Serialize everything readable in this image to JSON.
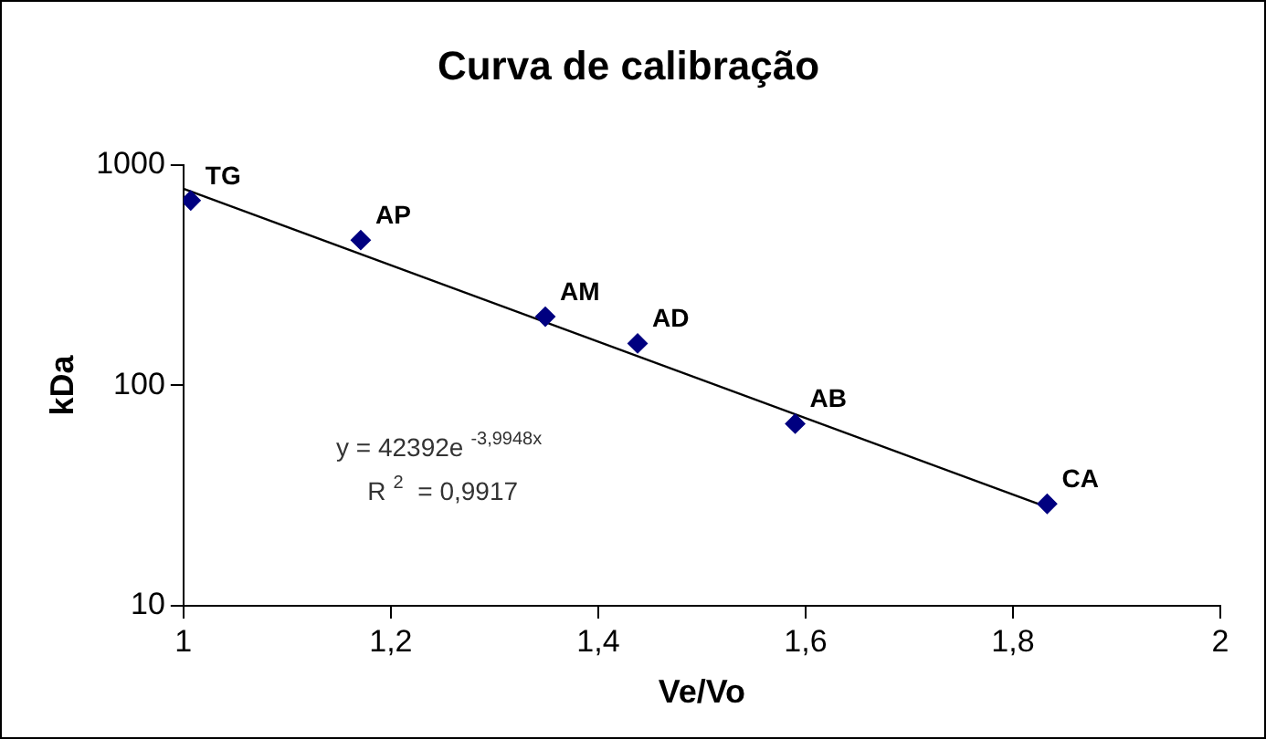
{
  "chart_data": {
    "type": "scatter",
    "title": "Curva de calibração",
    "xlabel": "Ve/Vo",
    "ylabel": "kDa",
    "log": "y",
    "grid": false,
    "legend": false,
    "marker": "diamond",
    "xlim": [
      1,
      2
    ],
    "xticks": [
      1,
      {
        "value": 1.2,
        "label": "1,2"
      },
      {
        "value": 1.4,
        "label": "1,4"
      },
      {
        "value": 1.6,
        "label": "1,6"
      },
      {
        "value": 1.8,
        "label": "1,8"
      },
      2
    ],
    "ylim": [
      10,
      1000
    ],
    "yticks": [
      10,
      100,
      1000
    ],
    "series": [
      {
        "color": "#000080",
        "x": [
          1.007,
          1.171,
          1.349,
          1.438,
          1.59,
          1.833
        ],
        "values": [
          690,
          456,
          205,
          155,
          67,
          29
        ]
      },
      {
        "type": "line",
        "color": "#000000",
        "marker": "none",
        "x": [
          1,
          1.833
        ],
        "values": [
          780,
          28
        ]
      }
    ],
    "annotations": [
      {
        "text": "TG",
        "x": 1.007,
        "y": 690
      },
      {
        "text": "AP",
        "x": 1.171,
        "y": 456
      },
      {
        "text": "AM",
        "x": 1.349,
        "y": 205
      },
      {
        "text": "AD",
        "x": 1.438,
        "y": 155
      },
      {
        "text": "AB",
        "x": 1.59,
        "y": 67
      },
      {
        "text": "CA",
        "x": 1.833,
        "y": 29
      },
      "y = 42392e$^{-3,9948x}$",
      "R$^{2}$ = 0,9917"
    ]
  }
}
